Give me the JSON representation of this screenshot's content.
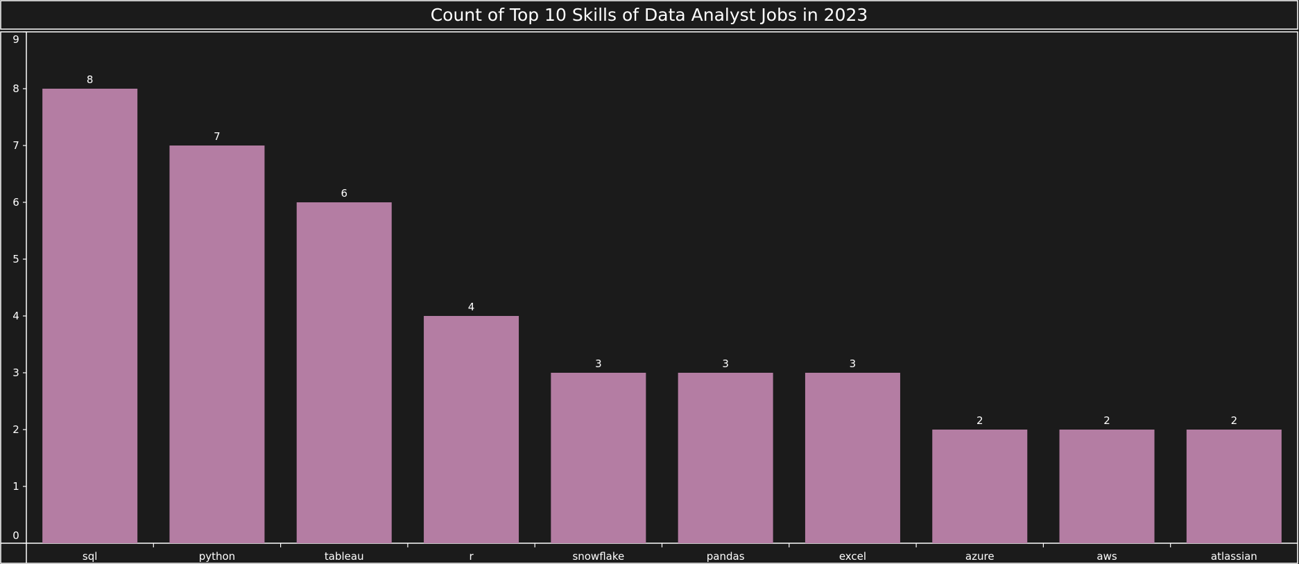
{
  "chart_data": {
    "type": "bar",
    "title": "Count of Top 10 Skills of Data Analyst Jobs in 2023",
    "xlabel": "",
    "ylabel": "",
    "categories": [
      "sql",
      "python",
      "tableau",
      "r",
      "snowflake",
      "pandas",
      "excel",
      "azure",
      "aws",
      "atlassian"
    ],
    "values": [
      8,
      7,
      6,
      4,
      3,
      3,
      3,
      2,
      2,
      2
    ],
    "ylim": [
      0,
      9
    ],
    "yticks": [
      "0",
      "1",
      "2",
      "3",
      "4",
      "5",
      "6",
      "7",
      "8",
      "9"
    ],
    "data_labels": [
      "8",
      "7",
      "6",
      "4",
      "3",
      "3",
      "3",
      "2",
      "2",
      "2"
    ],
    "grid": false,
    "legend": "none",
    "colors": {
      "background": "#1b1b1b",
      "bar": "#b47da3",
      "text": "#ffffff",
      "border": "#ffffff"
    }
  }
}
